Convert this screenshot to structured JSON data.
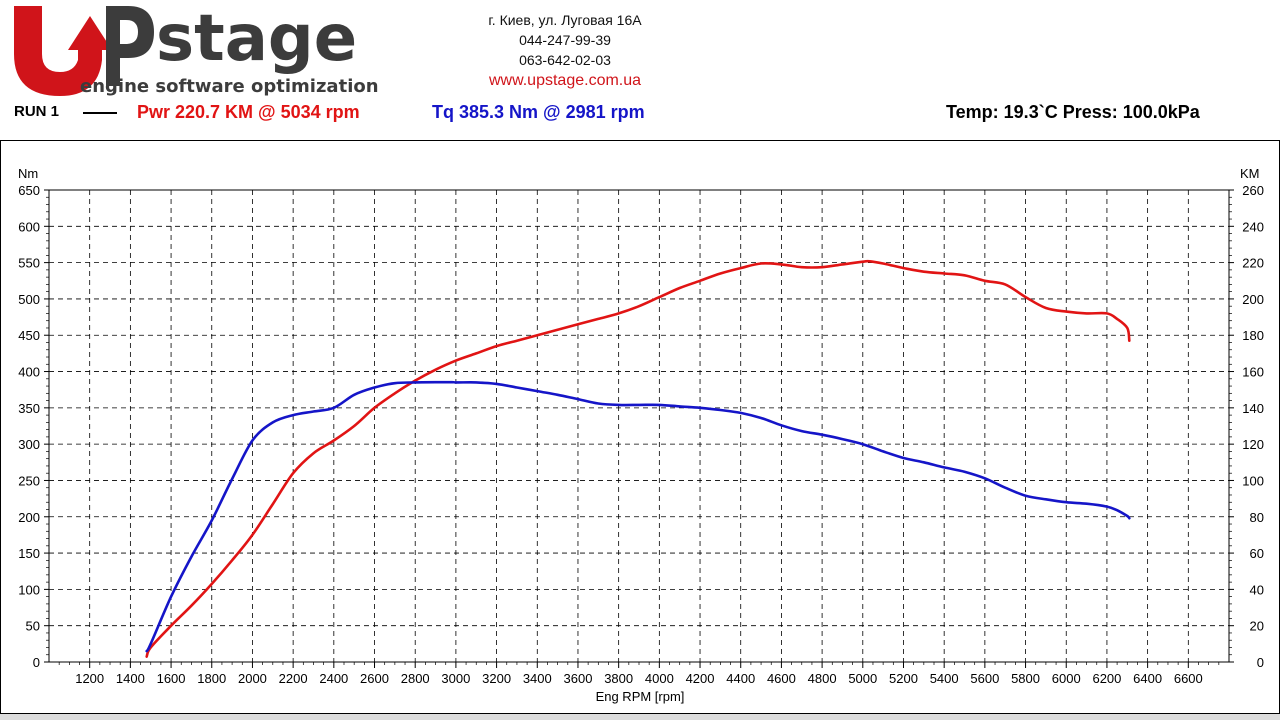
{
  "header": {
    "logo_text": "Upstage",
    "logo_tagline": "engine software optimization",
    "address": "г. Киев, ул. Луговая 16А",
    "phone1": "044-247-99-39",
    "phone2": "063-642-02-03",
    "website": "www.upstage.com.ua"
  },
  "run": {
    "label": "RUN 1",
    "power_summary": "Pwr  220.7 KM @ 5034 rpm",
    "torque_summary": "Tq 385.3 Nm @ 2981 rpm",
    "conditions": "Temp: 19.3`C    Press: 100.0kPa"
  },
  "colors": {
    "power": "#e11414",
    "torque": "#1515c8",
    "brand_red": "#d0141a",
    "brand_dark": "#3c3c3c"
  },
  "chart_data": {
    "type": "line",
    "xlabel": "Eng RPM [rpm]",
    "ylabel_left": "Nm",
    "ylabel_right": "KM",
    "xlim": [
      1000,
      6800
    ],
    "ylim_left": [
      0,
      650
    ],
    "ylim_right": [
      0,
      260
    ],
    "x_ticks": [
      1200,
      1400,
      1600,
      1800,
      2000,
      2200,
      2400,
      2600,
      2800,
      3000,
      3200,
      3400,
      3600,
      3800,
      4000,
      4200,
      4400,
      4600,
      4800,
      5000,
      5200,
      5400,
      5600,
      5800,
      6000,
      6200,
      6400,
      6600
    ],
    "y_ticks_left": [
      0,
      50,
      100,
      150,
      200,
      250,
      300,
      350,
      400,
      450,
      500,
      550,
      600,
      650
    ],
    "y_ticks_right": [
      0,
      20,
      40,
      60,
      80,
      100,
      120,
      140,
      160,
      180,
      200,
      220,
      240,
      260
    ],
    "grid": true,
    "series": [
      {
        "name": "Pwr",
        "axis": "right",
        "x": [
          1480,
          1500,
          1600,
          1700,
          1800,
          1900,
          2000,
          2100,
          2200,
          2300,
          2400,
          2500,
          2600,
          2700,
          2800,
          2900,
          3000,
          3100,
          3200,
          3300,
          3400,
          3500,
          3600,
          3700,
          3800,
          3900,
          4000,
          4100,
          4200,
          4300,
          4400,
          4500,
          4600,
          4700,
          4800,
          4900,
          5000,
          5034,
          5100,
          5200,
          5300,
          5400,
          5500,
          5600,
          5700,
          5800,
          5900,
          6000,
          6100,
          6200,
          6250,
          6300,
          6310
        ],
        "y": [
          3,
          8,
          20,
          31,
          43,
          56,
          70,
          87,
          104,
          115,
          122,
          130,
          140,
          148,
          155,
          161,
          166,
          170,
          174,
          177,
          180,
          183,
          186,
          189,
          192,
          196,
          201,
          206,
          210,
          214,
          217,
          219.5,
          219,
          217.5,
          217.5,
          219,
          220.5,
          220.7,
          219.5,
          217,
          215,
          214,
          213,
          210,
          208,
          201,
          195,
          193,
          192,
          192,
          189,
          184,
          177
        ]
      },
      {
        "name": "Tq",
        "axis": "left",
        "x": [
          1480,
          1500,
          1600,
          1700,
          1800,
          1900,
          2000,
          2100,
          2200,
          2300,
          2400,
          2500,
          2600,
          2700,
          2800,
          2900,
          2981,
          3000,
          3100,
          3200,
          3300,
          3400,
          3500,
          3600,
          3700,
          3800,
          3900,
          4000,
          4100,
          4200,
          4300,
          4400,
          4500,
          4600,
          4700,
          4800,
          4900,
          5000,
          5100,
          5200,
          5300,
          5400,
          5500,
          5600,
          5700,
          5800,
          5900,
          6000,
          6100,
          6200,
          6250,
          6300,
          6310
        ],
        "y": [
          15,
          25,
          90,
          145,
          195,
          252,
          305,
          330,
          340,
          345,
          350,
          368,
          378,
          384,
          385,
          385.3,
          385.3,
          385,
          385,
          383,
          378,
          373,
          368,
          362,
          356,
          354,
          354,
          354,
          352,
          350,
          347,
          343,
          336,
          326,
          318,
          313,
          307,
          300,
          290,
          281,
          275,
          268,
          262,
          253,
          240,
          229,
          224,
          220,
          218,
          214,
          209,
          201,
          198
        ]
      }
    ]
  }
}
